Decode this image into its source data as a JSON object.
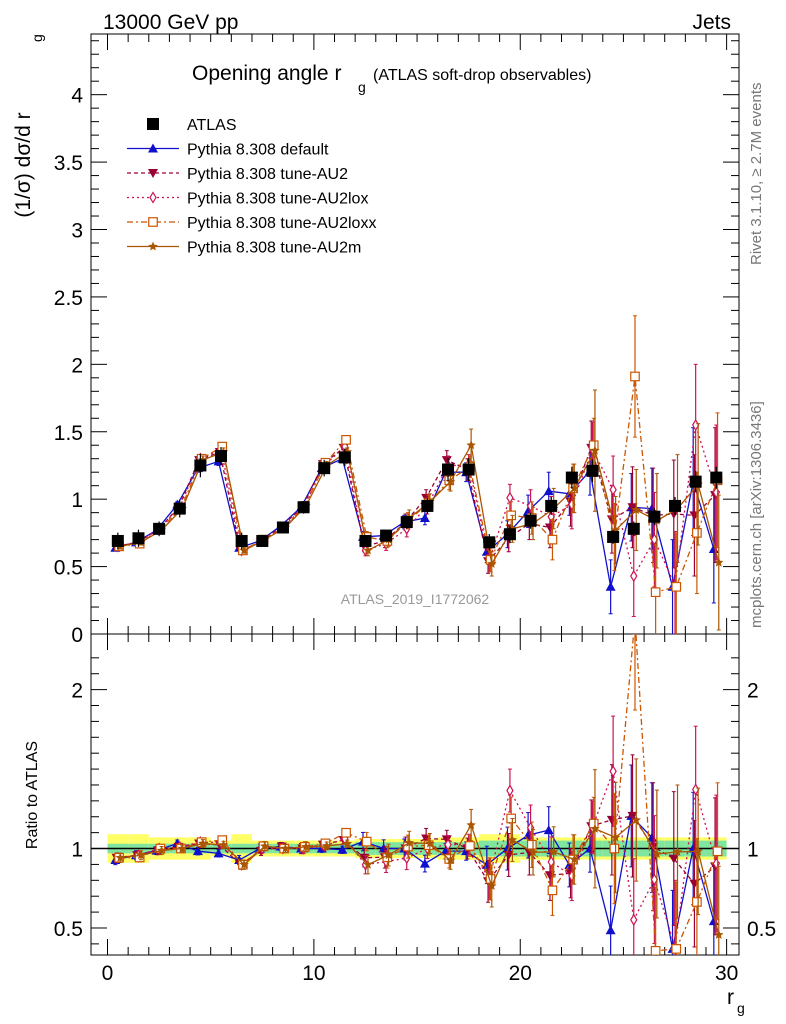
{
  "header": {
    "energy": "13000 GeV pp",
    "category": "Jets"
  },
  "plot": {
    "title_main": "Opening angle r",
    "title_sub": "g",
    "title_extra": "(ATLAS soft-drop observables)",
    "watermark": "ATLAS_2019_I1772062",
    "ylabel_main": "(1/σ) dσ/d r",
    "ylabel_sub": "g",
    "ratio_ylabel": "Ratio to ATLAS",
    "xlabel_main": "r",
    "xlabel_sub": "g"
  },
  "side": {
    "rivet": "Rivet 3.1.10, ≥ 2.7M events",
    "mcplots": "mcplots.cern.ch [arXiv:1306.3436]"
  },
  "chart_data": {
    "type": "scatter",
    "x": [
      0.5,
      1.5,
      2.5,
      3.5,
      4.5,
      5.5,
      6.5,
      7.5,
      8.5,
      9.5,
      10.5,
      11.5,
      12.5,
      13.5,
      14.5,
      15.5,
      16.5,
      17.5,
      18.5,
      19.5,
      20.5,
      21.5,
      22.5,
      23.5,
      24.5,
      25.5,
      26.5,
      27.5,
      28.5,
      29.5
    ],
    "xlim": [
      -0.8,
      30.6
    ],
    "main": {
      "ylim": [
        0,
        4.45
      ],
      "yticks": [
        0,
        0.5,
        1,
        1.5,
        2,
        2.5,
        3,
        3.5,
        4
      ],
      "yticklabels": [
        "0",
        "0.5",
        "1",
        "1.5",
        "2",
        "2.5",
        "3",
        "3.5",
        "4"
      ]
    },
    "ratio": {
      "ylim": [
        0.33,
        2.35
      ],
      "yticks": [
        0.5,
        1,
        2
      ],
      "yticklabels": [
        "0.5",
        "1",
        "2"
      ]
    },
    "xticks": [
      0,
      10,
      20,
      30
    ],
    "xticklabels": [
      "0",
      "10",
      "20",
      "30"
    ],
    "reference": {
      "name": "ATLAS",
      "color": "#000000",
      "values": [
        0.69,
        0.71,
        0.78,
        0.93,
        1.25,
        1.32,
        0.69,
        0.69,
        0.79,
        0.94,
        1.23,
        1.31,
        0.69,
        0.73,
        0.83,
        0.95,
        1.22,
        1.22,
        0.68,
        0.74,
        0.84,
        0.95,
        1.16,
        1.21,
        0.72,
        0.78,
        0.87,
        0.95,
        1.13,
        1.16
      ],
      "band_inner": [
        0.03,
        0.03,
        0.03,
        0.03,
        0.03,
        0.03,
        0.03,
        0.03,
        0.03,
        0.03,
        0.03,
        0.03,
        0.04,
        0.04,
        0.04,
        0.04,
        0.04,
        0.04,
        0.05,
        0.05,
        0.05,
        0.05,
        0.05,
        0.05,
        0.05,
        0.05,
        0.05,
        0.05,
        0.05,
        0.05
      ],
      "band_outer": [
        0.09,
        0.09,
        0.07,
        0.07,
        0.07,
        0.05,
        0.09,
        0.05,
        0.05,
        0.05,
        0.05,
        0.05,
        0.06,
        0.06,
        0.06,
        0.06,
        0.07,
        0.07,
        0.09,
        0.09,
        0.07,
        0.07,
        0.07,
        0.07,
        0.07,
        0.07,
        0.07,
        0.07,
        0.07,
        0.07
      ]
    },
    "series": [
      {
        "name": "Pythia 8.308 default",
        "color": "#1010cc",
        "marker": "triangle-up",
        "dash": "",
        "values": [
          0.64,
          0.68,
          0.77,
          0.96,
          1.23,
          1.28,
          0.64,
          0.69,
          0.8,
          0.94,
          1.23,
          1.3,
          0.72,
          0.73,
          0.83,
          0.86,
          1.2,
          1.2,
          0.61,
          0.74,
          0.91,
          1.06,
          1.04,
          1.21,
          0.35,
          0.94,
          0.93,
          0.35,
          1.13,
          0.63
        ],
        "errors": [
          0.02,
          0.02,
          0.02,
          0.02,
          0.03,
          0.03,
          0.02,
          0.02,
          0.02,
          0.03,
          0.03,
          0.03,
          0.04,
          0.04,
          0.05,
          0.05,
          0.06,
          0.07,
          0.08,
          0.1,
          0.12,
          0.14,
          0.16,
          0.18,
          0.2,
          0.25,
          0.3,
          0.35,
          0.4,
          0.4
        ]
      },
      {
        "name": "Pythia 8.308 tune-AU2",
        "color": "#990033",
        "marker": "triangle-down",
        "dash": "4,3",
        "values": [
          0.65,
          0.68,
          0.77,
          0.94,
          1.29,
          1.35,
          0.62,
          0.68,
          0.8,
          0.94,
          1.26,
          1.38,
          0.65,
          0.69,
          0.83,
          1.01,
          1.29,
          1.22,
          0.54,
          0.71,
          0.82,
          0.79,
          0.98,
          1.38,
          0.85,
          0.94,
          0.88,
          0.89,
          0.88,
          1.03
        ],
        "errors": [
          0.02,
          0.02,
          0.02,
          0.02,
          0.03,
          0.03,
          0.02,
          0.02,
          0.02,
          0.03,
          0.03,
          0.03,
          0.04,
          0.05,
          0.06,
          0.06,
          0.07,
          0.08,
          0.09,
          0.1,
          0.12,
          0.15,
          0.18,
          0.2,
          0.25,
          0.3,
          0.35,
          0.4,
          0.45,
          0.5
        ]
      },
      {
        "name": "Pythia 8.308 tune-AU2lox",
        "color": "#cc1155",
        "marker": "diamond-open",
        "dash": "2,3",
        "values": [
          0.65,
          0.68,
          0.78,
          0.94,
          1.3,
          1.37,
          0.62,
          0.69,
          0.79,
          0.94,
          1.25,
          1.39,
          0.62,
          0.67,
          0.78,
          0.95,
          1.25,
          1.25,
          0.55,
          1.01,
          0.95,
          0.87,
          0.96,
          1.37,
          1.07,
          0.43,
          0.7,
          0.36,
          1.55,
          1.05
        ],
        "errors": [
          0.02,
          0.02,
          0.02,
          0.02,
          0.03,
          0.03,
          0.02,
          0.02,
          0.02,
          0.03,
          0.03,
          0.03,
          0.04,
          0.05,
          0.06,
          0.06,
          0.07,
          0.08,
          0.09,
          0.1,
          0.12,
          0.15,
          0.18,
          0.2,
          0.25,
          0.3,
          0.35,
          0.4,
          0.45,
          0.5
        ]
      },
      {
        "name": "Pythia 8.308 tune-AU2loxx",
        "color": "#cc5500",
        "marker": "square-open",
        "dash": "6,3,2,3",
        "values": [
          0.65,
          0.67,
          0.78,
          0.93,
          1.3,
          1.39,
          0.62,
          0.7,
          0.79,
          0.95,
          1.27,
          1.44,
          0.72,
          0.69,
          0.84,
          0.97,
          1.14,
          1.24,
          0.55,
          0.88,
          0.86,
          0.7,
          1.08,
          1.4,
          0.72,
          1.91,
          0.31,
          0.35,
          0.75,
          1.14
        ],
        "errors": [
          0.02,
          0.02,
          0.02,
          0.02,
          0.03,
          0.03,
          0.02,
          0.02,
          0.02,
          0.03,
          0.03,
          0.03,
          0.04,
          0.05,
          0.06,
          0.06,
          0.07,
          0.08,
          0.09,
          0.1,
          0.12,
          0.15,
          0.18,
          0.2,
          0.25,
          0.45,
          0.35,
          0.4,
          0.45,
          0.5
        ]
      },
      {
        "name": "Pythia 8.308 tune-AU2m",
        "color": "#aa5500",
        "marker": "star",
        "dash": "",
        "values": [
          0.65,
          0.68,
          0.77,
          0.93,
          1.29,
          1.35,
          0.62,
          0.7,
          0.79,
          0.95,
          1.25,
          1.35,
          0.62,
          0.7,
          0.86,
          0.98,
          1.13,
          1.4,
          0.52,
          0.78,
          0.82,
          0.93,
          1.08,
          1.36,
          0.77,
          0.92,
          0.84,
          0.93,
          1.11,
          0.53
        ],
        "errors": [
          0.02,
          0.02,
          0.02,
          0.02,
          0.03,
          0.03,
          0.02,
          0.02,
          0.02,
          0.03,
          0.03,
          0.03,
          0.04,
          0.05,
          0.06,
          0.06,
          0.07,
          0.12,
          0.09,
          0.1,
          0.12,
          0.15,
          0.18,
          0.45,
          0.25,
          0.3,
          0.35,
          0.4,
          0.45,
          0.5
        ]
      }
    ],
    "legend_placement": "top-left",
    "grid": false
  }
}
